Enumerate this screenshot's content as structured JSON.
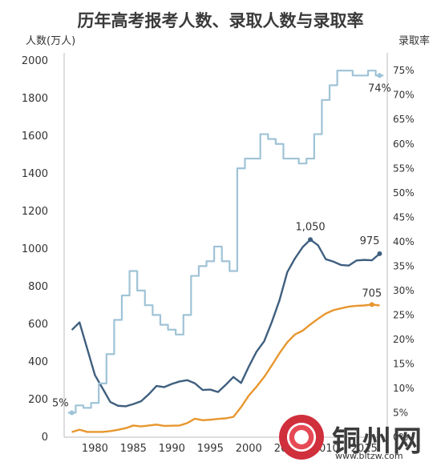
{
  "chart_data": {
    "type": "line",
    "title": "历年高考报考人数、录取人数与录取率",
    "ylabel_left": "人数(万人)",
    "ylabel_right": "录取率",
    "x_ticks": [
      1980,
      1985,
      1990,
      1995,
      2000,
      2005,
      2010,
      2015
    ],
    "xlim": [
      1976,
      2018
    ],
    "ylim_left": [
      0,
      2000
    ],
    "ylim_right": [
      0,
      77
    ],
    "left_ticks": [
      0,
      200,
      400,
      600,
      800,
      1000,
      1200,
      1400,
      1600,
      1800,
      2000
    ],
    "right_ticks": [
      "0%",
      "5%",
      "10%",
      "15%",
      "20%",
      "25%",
      "30%",
      "35%",
      "40%",
      "45%",
      "50%",
      "55%",
      "60%",
      "65%",
      "70%",
      "75%"
    ],
    "grid": false,
    "series": [
      {
        "axis": "left",
        "color": "#3f5f7f",
        "x": [
          1977,
          1978,
          1979,
          1980,
          1981,
          1982,
          1983,
          1984,
          1985,
          1986,
          1987,
          1988,
          1989,
          1990,
          1991,
          1992,
          1993,
          1994,
          1995,
          1996,
          1997,
          1998,
          1999,
          2000,
          2001,
          2002,
          2003,
          2004,
          2005,
          2006,
          2007,
          2008,
          2009,
          2010,
          2011,
          2012,
          2013,
          2014,
          2015,
          2016,
          2017
        ],
        "values": [
          570,
          610,
          470,
          330,
          259,
          187,
          167,
          164,
          176,
          191,
          228,
          272,
          266,
          283,
          296,
          303,
          286,
          251,
          253,
          240,
          278,
          320,
          288,
          375,
          454,
          510,
          613,
          729,
          877,
          950,
          1010,
          1050,
          1020,
          946,
          933,
          915,
          912,
          939,
          942,
          940,
          975
        ]
      },
      {
        "axis": "left",
        "color": "#e8962e",
        "x": [
          1977,
          1978,
          1979,
          1980,
          1981,
          1982,
          1983,
          1984,
          1985,
          1986,
          1987,
          1988,
          1989,
          1990,
          1991,
          1992,
          1993,
          1994,
          1995,
          1996,
          1997,
          1998,
          1999,
          2000,
          2001,
          2002,
          2003,
          2004,
          2005,
          2006,
          2007,
          2008,
          2009,
          2010,
          2011,
          2012,
          2013,
          2014,
          2015,
          2016,
          2017
        ],
        "values": [
          27,
          40,
          28,
          28,
          28,
          32,
          39,
          48,
          62,
          57,
          62,
          67,
          60,
          61,
          62,
          75,
          98,
          90,
          93,
          97,
          100,
          108,
          160,
          221,
          268,
          320,
          382,
          447,
          504,
          546,
          566,
          599,
          629,
          657,
          675,
          685,
          694,
          698,
          700,
          705,
          700
        ]
      },
      {
        "axis": "right",
        "step": true,
        "color": "#9fc3d6",
        "x": [
          1977,
          1978,
          1979,
          1980,
          1981,
          1982,
          1983,
          1984,
          1985,
          1986,
          1987,
          1988,
          1989,
          1990,
          1991,
          1992,
          1993,
          1994,
          1995,
          1996,
          1997,
          1998,
          1999,
          2000,
          2001,
          2002,
          2003,
          2004,
          2005,
          2006,
          2007,
          2008,
          2009,
          2010,
          2011,
          2012,
          2013,
          2014,
          2015,
          2016,
          2017
        ],
        "values": [
          5,
          6.5,
          6,
          7,
          11,
          17,
          24,
          29,
          34,
          30,
          27,
          25,
          23,
          22,
          21,
          25,
          33,
          35,
          36,
          39,
          36,
          34,
          55,
          57,
          57,
          62,
          61,
          60,
          57,
          57,
          56,
          57,
          62,
          69,
          72,
          75,
          75,
          74,
          74,
          75,
          74
        ]
      }
    ],
    "annotations": [
      {
        "text": "5%",
        "series": 2,
        "index": 0
      },
      {
        "text": "1,050",
        "series": 0,
        "index": 31
      },
      {
        "text": "975",
        "series": 0,
        "index": 40
      },
      {
        "text": "705",
        "series": 1,
        "index": 39
      },
      {
        "text": "74%",
        "series": 2,
        "index": 40
      }
    ]
  },
  "watermark": {
    "text": "铜州网",
    "url": "www.bltzw.com"
  }
}
